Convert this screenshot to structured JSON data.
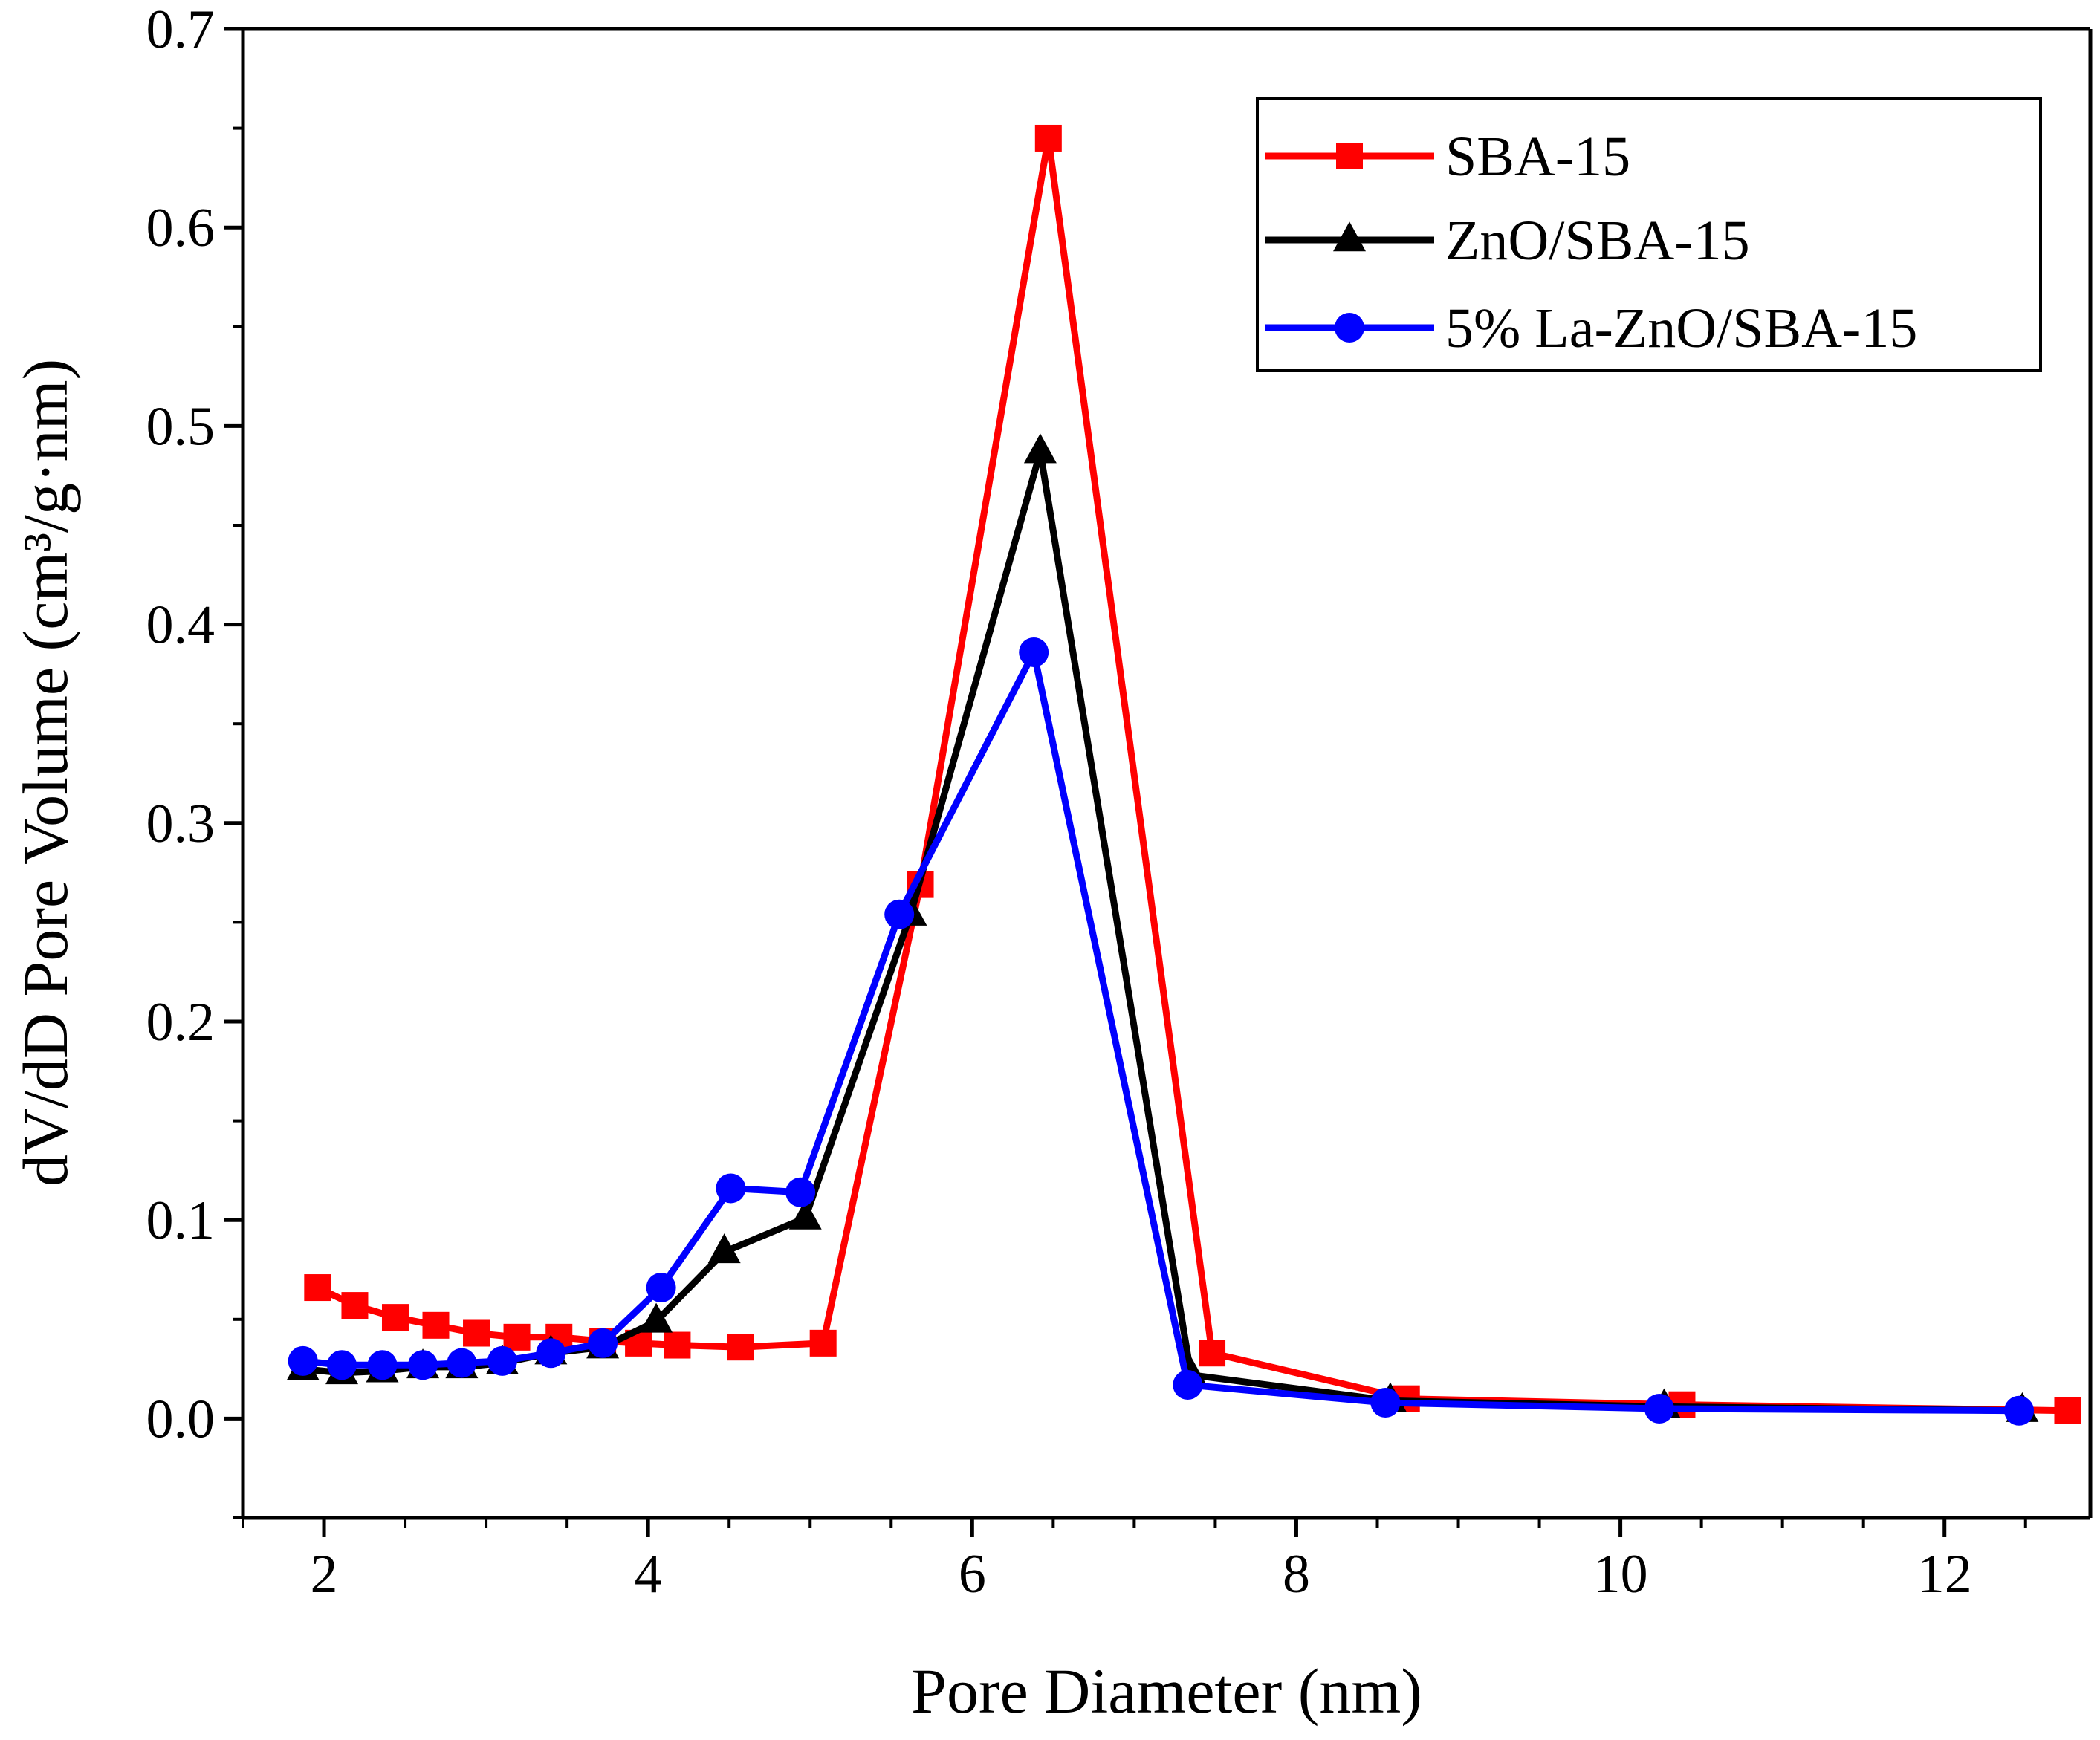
{
  "chart_data": {
    "type": "line",
    "title": "",
    "xlabel": "Pore Diameter (nm)",
    "ylabel": "dV/dD Pore Volume (cm³/g·nm)",
    "xlim": [
      1.5,
      12.9
    ],
    "ylim": [
      -0.05,
      0.7
    ],
    "xticks": [
      2,
      4,
      6,
      8,
      10,
      12
    ],
    "xtick_labels": [
      "2",
      "4",
      "6",
      "8",
      "10",
      "12"
    ],
    "yticks": [
      0.0,
      0.1,
      0.2,
      0.3,
      0.4,
      0.5,
      0.6,
      0.7
    ],
    "ytick_labels": [
      "0.0",
      "0.1",
      "0.2",
      "0.3",
      "0.4",
      "0.5",
      "0.6",
      "0.7"
    ],
    "grid": false,
    "legend_position": "top-right",
    "series": [
      {
        "name": "SBA-15",
        "color": "#ff0000",
        "marker": "square",
        "points": [
          [
            1.96,
            0.066
          ],
          [
            2.19,
            0.057
          ],
          [
            2.44,
            0.051
          ],
          [
            2.69,
            0.047
          ],
          [
            2.94,
            0.043
          ],
          [
            3.19,
            0.041
          ],
          [
            3.45,
            0.041
          ],
          [
            3.72,
            0.039
          ],
          [
            3.94,
            0.038
          ],
          [
            4.18,
            0.037
          ],
          [
            4.57,
            0.036
          ],
          [
            5.08,
            0.038
          ],
          [
            5.68,
            0.269
          ],
          [
            6.47,
            0.645
          ],
          [
            7.48,
            0.033
          ],
          [
            8.68,
            0.01
          ],
          [
            10.38,
            0.007
          ],
          [
            12.76,
            0.004
          ]
        ]
      },
      {
        "name": "ZnO/SBA-15",
        "color": "#000000",
        "marker": "triangle",
        "points": [
          [
            1.87,
            0.025
          ],
          [
            2.11,
            0.023
          ],
          [
            2.36,
            0.024
          ],
          [
            2.61,
            0.026
          ],
          [
            2.85,
            0.026
          ],
          [
            3.1,
            0.028
          ],
          [
            3.4,
            0.033
          ],
          [
            3.72,
            0.036
          ],
          [
            4.05,
            0.049
          ],
          [
            4.47,
            0.084
          ],
          [
            4.97,
            0.101
          ],
          [
            5.62,
            0.254
          ],
          [
            6.42,
            0.487
          ],
          [
            7.35,
            0.022
          ],
          [
            8.58,
            0.009
          ],
          [
            10.27,
            0.006
          ],
          [
            12.48,
            0.004
          ]
        ]
      },
      {
        "name": "5% La-ZnO/SBA-15",
        "color": "#0000ff",
        "marker": "circle",
        "points": [
          [
            1.87,
            0.029
          ],
          [
            2.11,
            0.027
          ],
          [
            2.36,
            0.027
          ],
          [
            2.61,
            0.027
          ],
          [
            2.85,
            0.028
          ],
          [
            3.1,
            0.029
          ],
          [
            3.4,
            0.033
          ],
          [
            3.72,
            0.038
          ],
          [
            4.08,
            0.066
          ],
          [
            4.51,
            0.116
          ],
          [
            4.94,
            0.114
          ],
          [
            5.55,
            0.254
          ],
          [
            6.38,
            0.386
          ],
          [
            7.33,
            0.017
          ],
          [
            8.55,
            0.008
          ],
          [
            10.24,
            0.005
          ],
          [
            12.46,
            0.004
          ]
        ]
      }
    ]
  }
}
